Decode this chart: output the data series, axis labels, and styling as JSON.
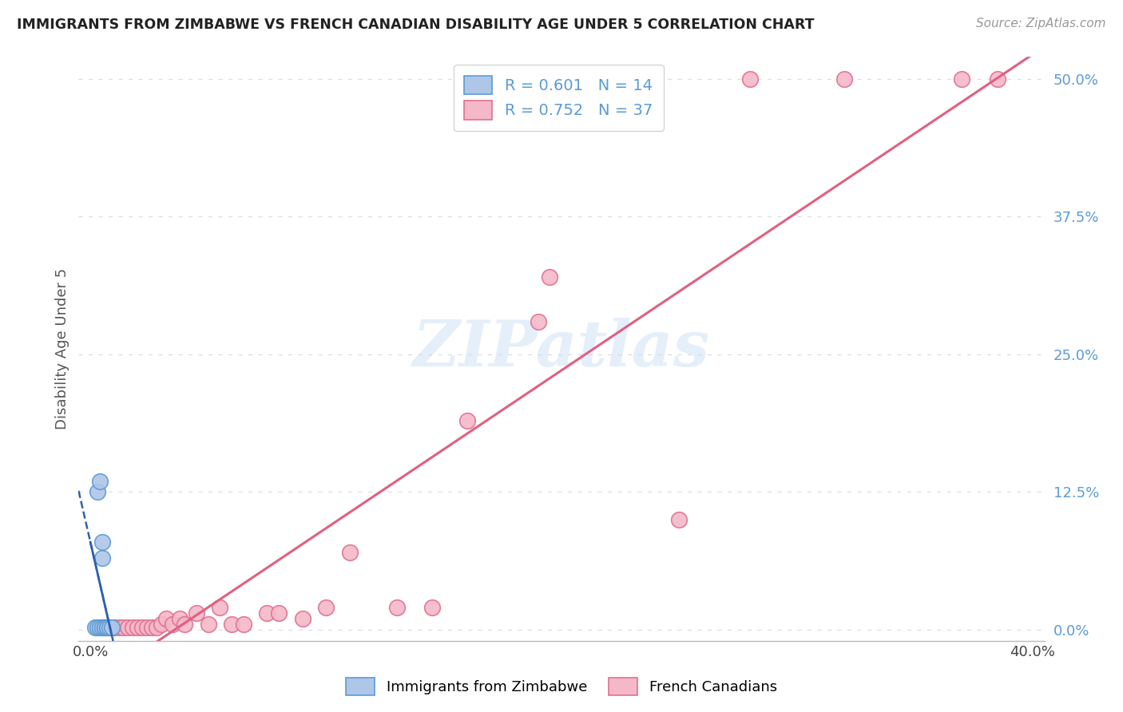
{
  "title": "IMMIGRANTS FROM ZIMBABWE VS FRENCH CANADIAN DISABILITY AGE UNDER 5 CORRELATION CHART",
  "source_text": "Source: ZipAtlas.com",
  "ylabel": "Disability Age Under 5",
  "xlim": [
    -0.005,
    0.405
  ],
  "ylim": [
    -0.01,
    0.52
  ],
  "x_ticks": [
    0.0,
    0.4
  ],
  "x_tick_labels": [
    "0.0%",
    "40.0%"
  ],
  "y_tick_values": [
    0.0,
    0.125,
    0.25,
    0.375,
    0.5
  ],
  "y_tick_labels": [
    "0.0%",
    "12.5%",
    "25.0%",
    "37.5%",
    "50.0%"
  ],
  "legend_r_blue": "R = 0.601   N = 14",
  "legend_r_pink": "R = 0.752   N = 37",
  "legend_label_blue": "Immigrants from Zimbabwe",
  "legend_label_pink": "French Canadians",
  "watermark": "ZIPatlas",
  "blue_color": "#5b9bd5",
  "pink_color": "#e07090",
  "blue_scatter_face": "#aec6e8",
  "pink_scatter_face": "#f4b8c8",
  "blue_trend_color": "#3060b0",
  "pink_trend_color": "#e06080",
  "grid_color": "#dddddd",
  "title_color": "#222222",
  "source_color": "#999999",
  "blue_points_x": [
    0.002,
    0.003,
    0.003,
    0.004,
    0.004,
    0.005,
    0.005,
    0.005,
    0.006,
    0.006,
    0.007,
    0.007,
    0.008,
    0.009
  ],
  "blue_points_y": [
    0.002,
    0.002,
    0.125,
    0.002,
    0.135,
    0.002,
    0.065,
    0.08,
    0.002,
    0.002,
    0.002,
    0.002,
    0.002,
    0.002
  ],
  "pink_points_x": [
    0.005,
    0.008,
    0.01,
    0.012,
    0.014,
    0.016,
    0.018,
    0.02,
    0.022,
    0.024,
    0.026,
    0.028,
    0.03,
    0.032,
    0.035,
    0.038,
    0.04,
    0.045,
    0.05,
    0.055,
    0.06,
    0.065,
    0.075,
    0.08,
    0.09,
    0.1,
    0.11,
    0.13,
    0.145,
    0.16,
    0.19,
    0.195,
    0.25,
    0.28,
    0.32,
    0.37,
    0.385
  ],
  "pink_points_y": [
    0.002,
    0.002,
    0.002,
    0.002,
    0.002,
    0.002,
    0.002,
    0.002,
    0.002,
    0.002,
    0.002,
    0.002,
    0.005,
    0.01,
    0.005,
    0.01,
    0.005,
    0.015,
    0.005,
    0.02,
    0.005,
    0.005,
    0.015,
    0.015,
    0.01,
    0.02,
    0.07,
    0.02,
    0.02,
    0.19,
    0.28,
    0.32,
    0.1,
    0.5,
    0.5,
    0.5,
    0.5
  ]
}
